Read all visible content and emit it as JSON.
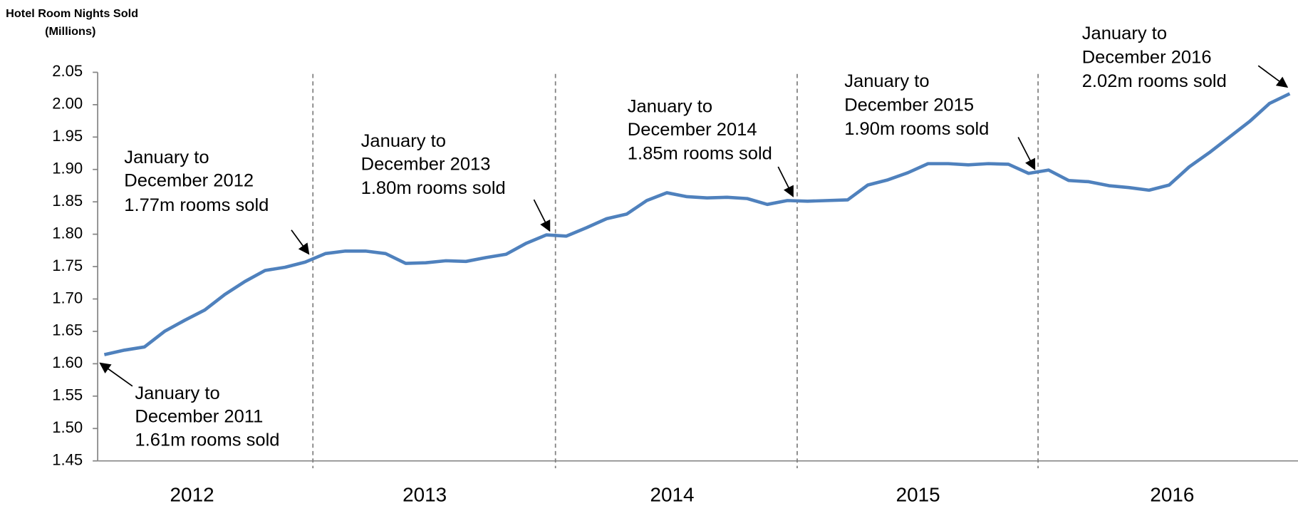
{
  "chart_data": {
    "type": "line",
    "title": [
      "Hotel Room Nights Sold",
      "(Millions)"
    ],
    "year_labels": [
      "2012",
      "2013",
      "2014",
      "2015",
      "2016"
    ],
    "color": "#4f81bd",
    "values": [
      1.614,
      1.621,
      1.626,
      1.65,
      1.667,
      1.683,
      1.707,
      1.727,
      1.744,
      1.749,
      1.757,
      1.77,
      1.774,
      1.774,
      1.77,
      1.755,
      1.756,
      1.759,
      1.758,
      1.764,
      1.769,
      1.786,
      1.799,
      1.797,
      1.81,
      1.824,
      1.831,
      1.852,
      1.864,
      1.858,
      1.856,
      1.857,
      1.855,
      1.846,
      1.852,
      1.851,
      1.852,
      1.853,
      1.876,
      1.884,
      1.895,
      1.909,
      1.909,
      1.907,
      1.909,
      1.908,
      1.894,
      1.899,
      1.883,
      1.881,
      1.875,
      1.872,
      1.868,
      1.876,
      1.904,
      1.926,
      1.95,
      1.974,
      2.002,
      2.017
    ],
    "ylim": [
      1.45,
      2.05
    ],
    "yticks": [
      1.45,
      {
        "value": 1.5,
        "label": "1.50"
      },
      1.55,
      {
        "value": 1.6,
        "label": "1.60"
      },
      1.65,
      {
        "value": 1.7,
        "label": "1.70"
      },
      1.75,
      {
        "value": 1.8,
        "label": "1.80"
      },
      1.85,
      {
        "value": 1.9,
        "label": "1.90"
      },
      1.95,
      {
        "value": 2.0,
        "label": "2.00"
      },
      2.05
    ],
    "annotations": [
      {
        "lines": [
          "January to",
          "December 2011",
          "1.61m rooms sold"
        ]
      },
      {
        "lines": [
          "January to",
          "December 2012",
          "1.77m rooms sold"
        ]
      },
      {
        "lines": [
          "January to",
          "December 2013",
          "1.80m rooms sold"
        ]
      },
      {
        "lines": [
          "January to",
          "December 2014",
          "1.85m rooms sold"
        ]
      },
      {
        "lines": [
          "January to",
          "December 2015",
          "1.90m rooms sold"
        ]
      },
      {
        "lines": [
          "January to",
          "December 2016",
          "2.02m rooms sold"
        ]
      }
    ]
  }
}
